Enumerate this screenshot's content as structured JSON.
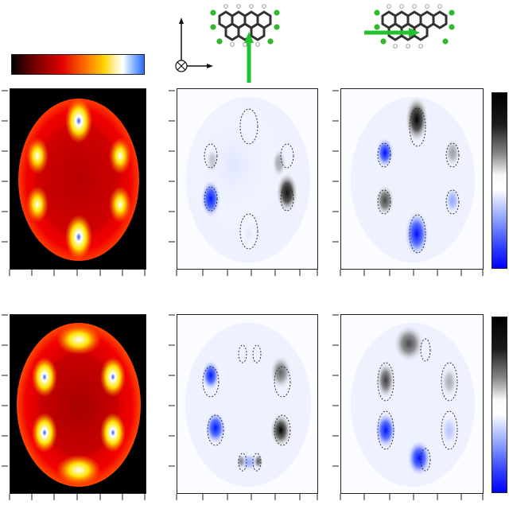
{
  "figure": {
    "colorbar_heat": {
      "stops": [
        "#000000",
        "#7a0000",
        "#e00000",
        "#ff6a00",
        "#ffd400",
        "#ffffff",
        "#8ab4ff",
        "#2a6dff"
      ],
      "orientation": "horizontal"
    },
    "colorbar_diff": {
      "stops": [
        "#000000",
        "#777777",
        "#ffffff",
        "#9fb0ff",
        "#3f55ff",
        "#0000ff"
      ],
      "orientation": "vertical"
    },
    "axes_symbol": {
      "up_arrow": true,
      "right_arrow": true,
      "into_page_symbol": "⊗"
    },
    "molecules": [
      {
        "name": "molecule-vertical-arrow",
        "arrow_direction": "up",
        "arrow_color": "#22c22e"
      },
      {
        "name": "molecule-horizontal-arrow",
        "arrow_direction": "right",
        "arrow_color": "#22c22e"
      }
    ],
    "rows": [
      {
        "heatmap": {
          "style": "top",
          "colors": {
            "bg": "#000000",
            "red": "#e30000",
            "hot": "#ffd400",
            "cool": "#2e63ff"
          }
        },
        "diff_panels": [
          "row1-diff-vertical",
          "row1-diff-horizontal"
        ]
      },
      {
        "heatmap": {
          "style": "bottom",
          "colors": {
            "bg": "#000000",
            "red": "#e30000",
            "hot": "#ffd400",
            "cool": "#2e63ff"
          }
        },
        "diff_panels": [
          "row2-diff-vertical",
          "row2-diff-horizontal"
        ]
      }
    ],
    "accent_colors": {
      "green": "#22c22e",
      "black": "#111111",
      "blue": "#2a5bff",
      "frame": "#222222"
    }
  }
}
